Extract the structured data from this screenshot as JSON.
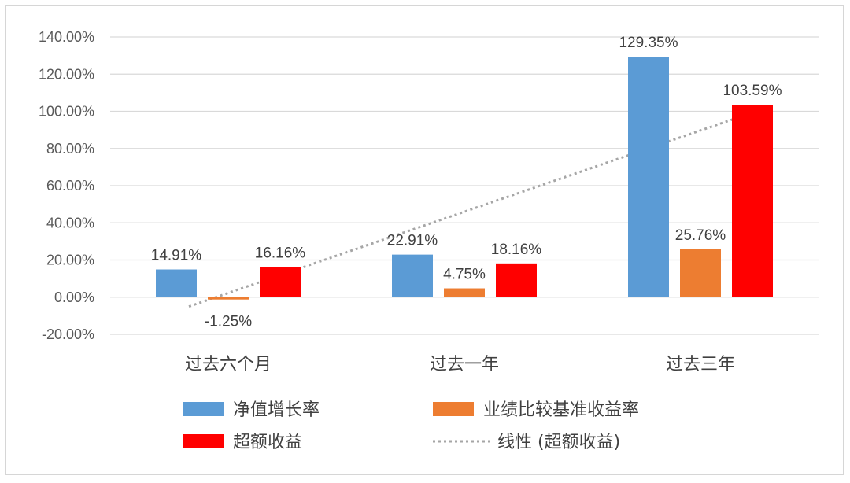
{
  "chart_data": {
    "type": "bar",
    "categories": [
      "过去六个月",
      "过去一年",
      "过去三年"
    ],
    "series": [
      {
        "name": "净值增长率",
        "color": "#5b9bd5",
        "values": [
          14.91,
          22.91,
          129.35
        ],
        "labels": [
          "14.91%",
          "22.91%",
          "129.35%"
        ]
      },
      {
        "name": "业绩比较基准收益率",
        "color": "#ed7d31",
        "values": [
          -1.25,
          4.75,
          25.76
        ],
        "labels": [
          "-1.25%",
          "4.75%",
          "25.76%"
        ]
      },
      {
        "name": "超额收益",
        "color": "#ff0000",
        "values": [
          16.16,
          18.16,
          103.59
        ],
        "labels": [
          "16.16%",
          "18.16%",
          "103.59%"
        ]
      }
    ],
    "trendline": {
      "name": "线性 (超额收益)",
      "of_series": "超额收益",
      "type": "linear",
      "color": "#a6a6a6",
      "style": "dotted"
    },
    "yticks": [
      "140.00%",
      "120.00%",
      "100.00%",
      "80.00%",
      "60.00%",
      "40.00%",
      "20.00%",
      "0.00%",
      "-20.00%"
    ],
    "ylim": [
      -20,
      140
    ],
    "grid": true,
    "legend_position": "bottom",
    "title": "",
    "xlabel": "",
    "ylabel": ""
  }
}
